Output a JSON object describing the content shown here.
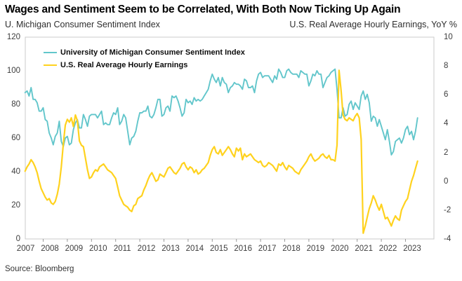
{
  "header": {
    "title": "Wages and Sentiment Seem to be Correlated, With Both Now Ticking Up Again",
    "left_axis_title": "U. Michigan Consumer Sentiment Index",
    "right_axis_title": "U.S. Real Average Hourly Earnings, YoY %"
  },
  "footer": {
    "source": "Source: Bloomberg"
  },
  "colors": {
    "sentiment": "#62C6CB",
    "earnings": "#FFD21E",
    "frame": "#CBCBCB",
    "axis_tick": "#9A9A9A"
  },
  "chart_data": {
    "type": "line",
    "title": "Wages and Sentiment Seem to be Correlated, With Both Now Ticking Up Again",
    "x_start_year": 2007.25,
    "x_step": "monthly",
    "x_end_year": 2023.5,
    "x_tick_labels": [
      "2007",
      "2008",
      "2009",
      "2010",
      "2011",
      "2012",
      "2013",
      "2014",
      "2015",
      "2016",
      "2017",
      "2018",
      "2019",
      "2020",
      "2021",
      "2022",
      "2023"
    ],
    "grid": false,
    "legend_position": "top-left-inside",
    "left_axis": {
      "title": "U. Michigan Consumer Sentiment Index",
      "ylim": [
        0,
        120
      ],
      "ticks": [
        "120",
        "100",
        "80",
        "60",
        "40",
        "20",
        "0"
      ]
    },
    "right_axis": {
      "title": "U.S. Real Average Hourly Earnings, YoY %",
      "ylim": [
        -4,
        10
      ],
      "ticks": [
        "10",
        "8",
        "6",
        "4",
        "2",
        "0",
        "-2",
        "-4"
      ]
    },
    "legend": [
      {
        "label": "University of Michigan Consumer Sentiment Index",
        "color_key": "sentiment"
      },
      {
        "label": "U.S. Real Average Hourly Earnings",
        "color_key": "earnings"
      }
    ],
    "series": [
      {
        "name": "University of Michigan Consumer Sentiment Index",
        "axis": "left",
        "color_key": "sentiment",
        "values": [
          87,
          88,
          85,
          90,
          83,
          83,
          81,
          76,
          76,
          78,
          71,
          70,
          63,
          60,
          56,
          61,
          63,
          70,
          58,
          55,
          60,
          61,
          56,
          57,
          65,
          69,
          71,
          66,
          66,
          74,
          71,
          67,
          73,
          74,
          74,
          74,
          72,
          74,
          76,
          68,
          69,
          68,
          68,
          72,
          75,
          74,
          78,
          68,
          70,
          74,
          72,
          64,
          56,
          60,
          61,
          64,
          70,
          75,
          75,
          76,
          76,
          79,
          73,
          72,
          74,
          78,
          83,
          83,
          73,
          74,
          78,
          79,
          76,
          85,
          84,
          85,
          82,
          78,
          73,
          75,
          83,
          81,
          82,
          80,
          84,
          82,
          83,
          82,
          83,
          85,
          87,
          89,
          94,
          98,
          95,
          93,
          96,
          91,
          96,
          93,
          92,
          87,
          90,
          91,
          93,
          92,
          92,
          91,
          89,
          95,
          94,
          90,
          90,
          91,
          87,
          94,
          98,
          99,
          96,
          97,
          97,
          97,
          95,
          93,
          97,
          95,
          101,
          99,
          96,
          96,
          100,
          101,
          99,
          98,
          98,
          98,
          96,
          100,
          99,
          98,
          98,
          91,
          94,
          98,
          97,
          100,
          98,
          98,
          90,
          93,
          96,
          97,
          99,
          100,
          101,
          89,
          72,
          72,
          78,
          73,
          74,
          80,
          82,
          77,
          81,
          79,
          77,
          85,
          88,
          83,
          86,
          81,
          70,
          73,
          72,
          67,
          71,
          67,
          63,
          59,
          65,
          58,
          50,
          52,
          58,
          59,
          60,
          57,
          60,
          65,
          67,
          62,
          64,
          59,
          64,
          72
        ]
      },
      {
        "name": "U.S. Real Average Hourly Earnings",
        "axis": "right",
        "color_key": "earnings",
        "values": [
          0.7,
          1.0,
          1.2,
          1.5,
          1.3,
          1.0,
          0.6,
          0.0,
          -0.5,
          -0.8,
          -1.1,
          -1.3,
          -1.2,
          -1.5,
          -1.6,
          -1.4,
          -0.9,
          -0.2,
          1.0,
          2.6,
          3.9,
          4.3,
          4.1,
          4.4,
          3.8,
          4.6,
          4.2,
          2.8,
          2.5,
          2.4,
          1.6,
          0.8,
          0.2,
          0.3,
          0.6,
          0.8,
          0.7,
          1.0,
          1.1,
          1.2,
          1.0,
          0.8,
          0.7,
          0.6,
          0.4,
          0.2,
          -0.4,
          -1.0,
          -1.3,
          -1.6,
          -1.7,
          -1.8,
          -2.0,
          -2.1,
          -1.7,
          -1.6,
          -1.2,
          -1.1,
          -1.0,
          -0.6,
          -0.3,
          0.1,
          0.4,
          0.6,
          0.3,
          0.0,
          0.1,
          0.5,
          0.4,
          0.3,
          0.6,
          0.9,
          1.0,
          0.8,
          0.6,
          0.5,
          0.7,
          0.9,
          1.2,
          1.3,
          1.0,
          0.8,
          1.0,
          0.9,
          0.6,
          0.8,
          0.5,
          0.6,
          0.8,
          0.9,
          1.1,
          1.3,
          1.8,
          2.2,
          2.4,
          2.0,
          1.9,
          2.2,
          1.8,
          2.0,
          2.2,
          2.4,
          2.2,
          1.9,
          1.7,
          2.3,
          2.1,
          2.3,
          1.5,
          1.9,
          1.7,
          1.8,
          1.9,
          1.7,
          1.5,
          1.4,
          1.3,
          1.4,
          1.1,
          1.0,
          1.1,
          1.3,
          1.2,
          1.1,
          0.9,
          0.7,
          1.2,
          1.1,
          1.3,
          1.0,
          0.8,
          1.1,
          1.0,
          0.9,
          0.7,
          0.6,
          0.5,
          0.8,
          1.0,
          1.2,
          1.4,
          1.7,
          1.9,
          1.6,
          1.4,
          1.5,
          1.6,
          1.8,
          1.9,
          1.7,
          1.6,
          1.8,
          1.5,
          1.5,
          1.4,
          2.5,
          7.7,
          6.3,
          4.6,
          4.3,
          4.2,
          4.4,
          4.3,
          4.2,
          4.5,
          4.7,
          4.4,
          2.9,
          -3.6,
          -3.1,
          -2.5,
          -1.9,
          -1.5,
          -1.0,
          -1.3,
          -1.7,
          -2.0,
          -1.6,
          -2.1,
          -2.6,
          -2.5,
          -2.8,
          -3.1,
          -2.7,
          -2.4,
          -2.6,
          -2.7,
          -2.0,
          -1.7,
          -1.4,
          -1.2,
          -0.6,
          0.0,
          0.4,
          0.9,
          1.4
        ]
      }
    ]
  }
}
